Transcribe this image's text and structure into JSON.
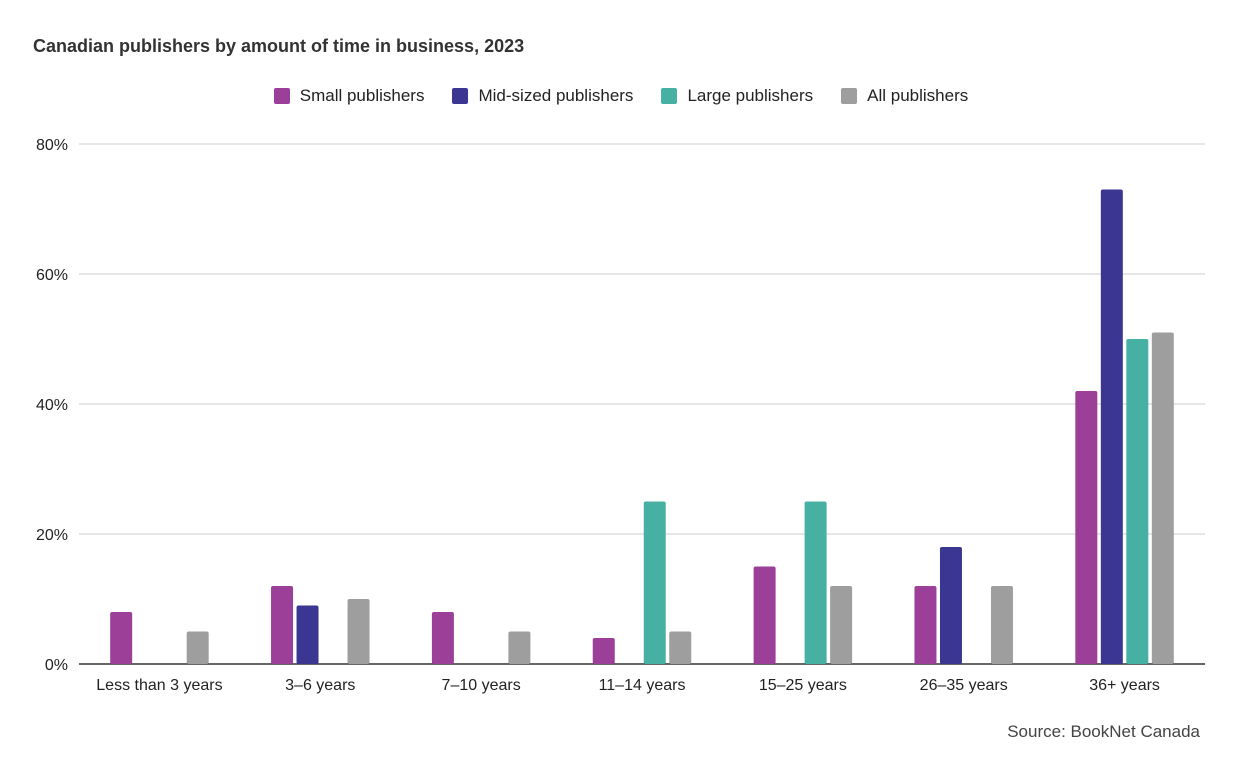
{
  "chart_data": {
    "type": "bar",
    "title": "Canadian publishers by amount of time in business, 2023",
    "categories": [
      "Less than 3 years",
      "3–6 years",
      "7–10 years",
      "11–14 years",
      "15–25 years",
      "26–35 years",
      "36+ years"
    ],
    "series": [
      {
        "name": "Small publishers",
        "color": "#9b3f99",
        "values": [
          8,
          12,
          8,
          4,
          15,
          12,
          42
        ]
      },
      {
        "name": "Mid-sized publishers",
        "color": "#3a3691",
        "values": [
          0,
          9,
          0,
          0,
          0,
          18,
          73
        ]
      },
      {
        "name": "Large publishers",
        "color": "#46b1a2",
        "values": [
          0,
          0,
          0,
          25,
          25,
          0,
          50
        ]
      },
      {
        "name": "All publishers",
        "color": "#9e9e9e",
        "values": [
          5,
          10,
          5,
          5,
          12,
          12,
          51
        ]
      }
    ],
    "ylim": [
      0,
      80
    ],
    "yticks": [
      "0%",
      "20%",
      "40%",
      "60%",
      "80%"
    ],
    "grid": true,
    "legend_position": "top-center",
    "source": "Source: BookNet Canada"
  }
}
